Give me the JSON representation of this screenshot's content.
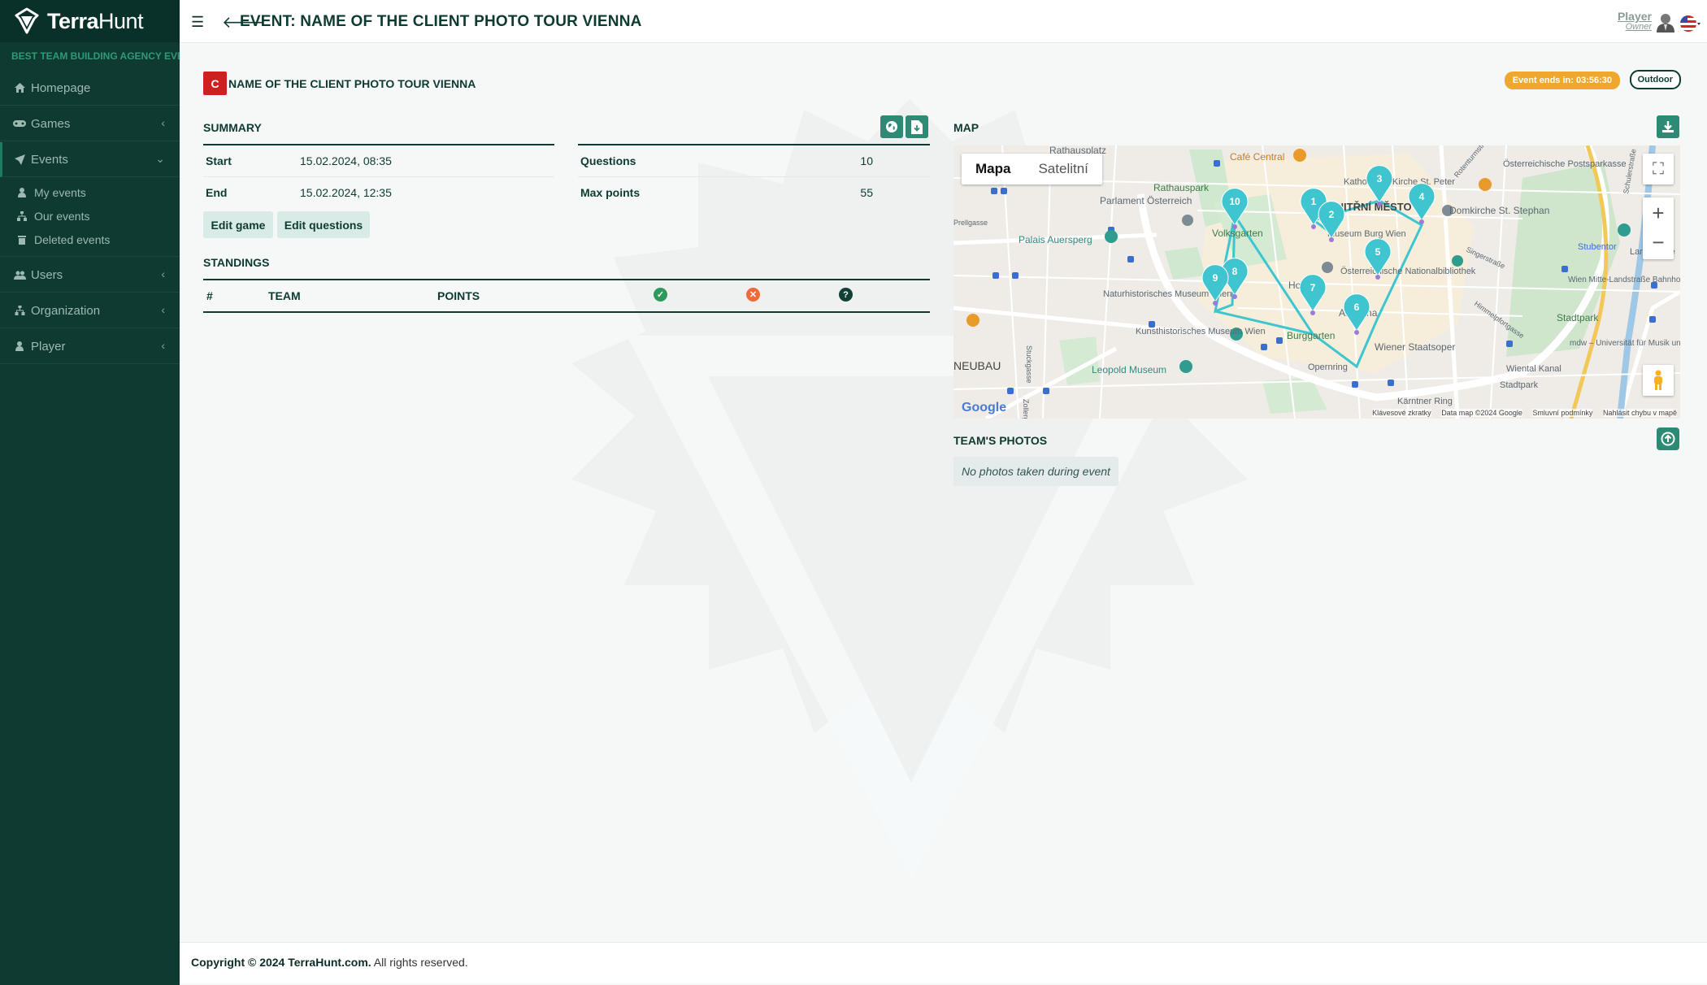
{
  "sidebar": {
    "brand": {
      "name_bold": "Terra",
      "name_light": "Hunt"
    },
    "tagline": "BEST TEAM BUILDING AGENCY EVER",
    "items": [
      {
        "label": "Homepage",
        "icon": "home-icon"
      },
      {
        "label": "Games",
        "icon": "gamepad-icon"
      },
      {
        "label": "Events",
        "icon": "rocket-icon"
      },
      {
        "label": "Users",
        "icon": "users-icon"
      },
      {
        "label": "Organization",
        "icon": "sitemap-icon"
      },
      {
        "label": "Player",
        "icon": "user-icon"
      }
    ],
    "events_submenu": [
      {
        "label": "My events",
        "icon": "user-icon"
      },
      {
        "label": "Our events",
        "icon": "sitemap-icon"
      },
      {
        "label": "Deleted events",
        "icon": "trash-icon"
      }
    ]
  },
  "header": {
    "title": "EVENT: NAME OF THE CLIENT PHOTO TOUR VIENNA",
    "user_name": "Player",
    "user_role": "Owner"
  },
  "event": {
    "client_badge": "C",
    "client_name": "NAME OF THE CLIENT PHOTO TOUR VIENNA",
    "ends_in": "Event ends in: 03:56:30",
    "type": "Outdoor"
  },
  "summary": {
    "title": "SUMMARY",
    "start_label": "Start",
    "start_value": "15.02.2024, 08:35",
    "end_label": "End",
    "end_value": "15.02.2024, 12:35",
    "questions_label": "Questions",
    "questions_value": "10",
    "max_points_label": "Max points",
    "max_points_value": "55",
    "edit_game": "Edit game",
    "edit_questions": "Edit questions"
  },
  "standings": {
    "title": "STANDINGS",
    "col_rank": "#",
    "col_team": "TEAM",
    "col_points": "POINTS"
  },
  "map": {
    "title": "MAP",
    "type_map": "Mapa",
    "type_satellite": "Satelitní",
    "labels": [
      "Rathausplatz",
      "Café Central",
      "Katholische Kirche St. Peter",
      "Österreichische Postsparkasse",
      "Rathauspark",
      "Parlament Österreich",
      "VNITŘNÍ MĚSTO",
      "Domkirche St. Stephan",
      "Volksgarten",
      "Museum Burg Wien",
      "Palais Auersperg",
      "Stubentor",
      "Landstraße",
      "Österreichische Nationalbibliothek",
      "Hofburg",
      "Naturhistorisches Museum Wien",
      "Albertina",
      "Kunsthistorisches Museum Wien",
      "Burggarten",
      "Wiener Staatsoper",
      "Stadtpark",
      "Wien Mitte-Landstraße Bahnhof",
      "Leopold Museum",
      "Opernring",
      "Kärntner Ring",
      "Wiental Kanal",
      "Stadtpark",
      "mdw – Universität für Musik und dars",
      "NEUBAU",
      "Stuckgasse",
      "Zollergasse",
      "Singerstraße",
      "Himmelpfortgasse",
      "Schulerstraße",
      "Rotenturmstraße",
      "Prellgasse"
    ],
    "markers": [
      "1",
      "2",
      "3",
      "4",
      "5",
      "6",
      "7",
      "8",
      "9",
      "10"
    ],
    "google": "Google",
    "footer": {
      "shortcuts": "Klávesové zkratky",
      "data": "Data map ©2024 Google",
      "terms": "Smluvní podmínky",
      "report": "Nahlásit chybu v mapě"
    }
  },
  "photos": {
    "title": "TEAM'S PHOTOS",
    "empty": "No photos taken during event"
  },
  "footer": {
    "copyright": "Copyright © 2024 TerraHunt.com.",
    "rights": "All rights reserved."
  },
  "colors": {
    "sidebar": "#0e3a32",
    "accent": "#2d8a74",
    "brand_red": "#cf2020",
    "warning": "#f0a72d",
    "marker": "#3ec5cf"
  }
}
